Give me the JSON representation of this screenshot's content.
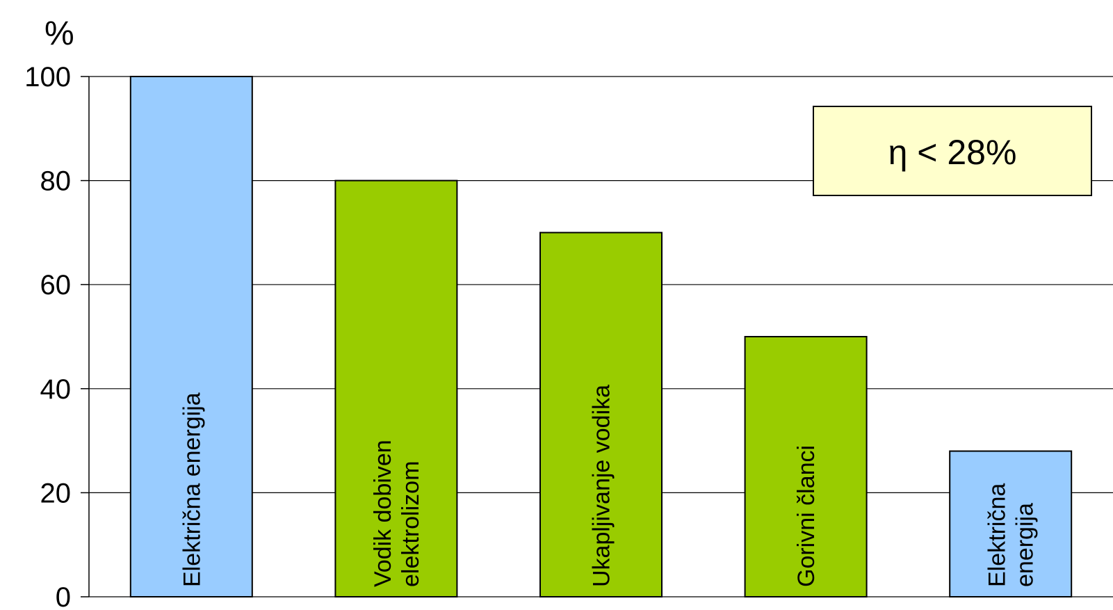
{
  "chart_data": {
    "type": "bar",
    "categories": [
      [
        "Električna energija"
      ],
      [
        "Vodik dobiven",
        "elektrolizom"
      ],
      [
        "Ukapljivanje vodika"
      ],
      [
        "Gorivni članci"
      ],
      [
        "Električna",
        "energija"
      ]
    ],
    "values": [
      100,
      80,
      70,
      50,
      28
    ],
    "bar_colors": [
      "#99ccff",
      "#99cc00",
      "#99cc00",
      "#99cc00",
      "#99ccff"
    ],
    "ylabel": "%",
    "ylim": [
      0,
      100
    ],
    "yticks": [
      0,
      20,
      40,
      60,
      80,
      100
    ],
    "grid": true,
    "labels_inside_bars": "vertical",
    "annotation": {
      "text": "η < 28%",
      "background": "#ffffcc",
      "placement": "top-right"
    }
  }
}
